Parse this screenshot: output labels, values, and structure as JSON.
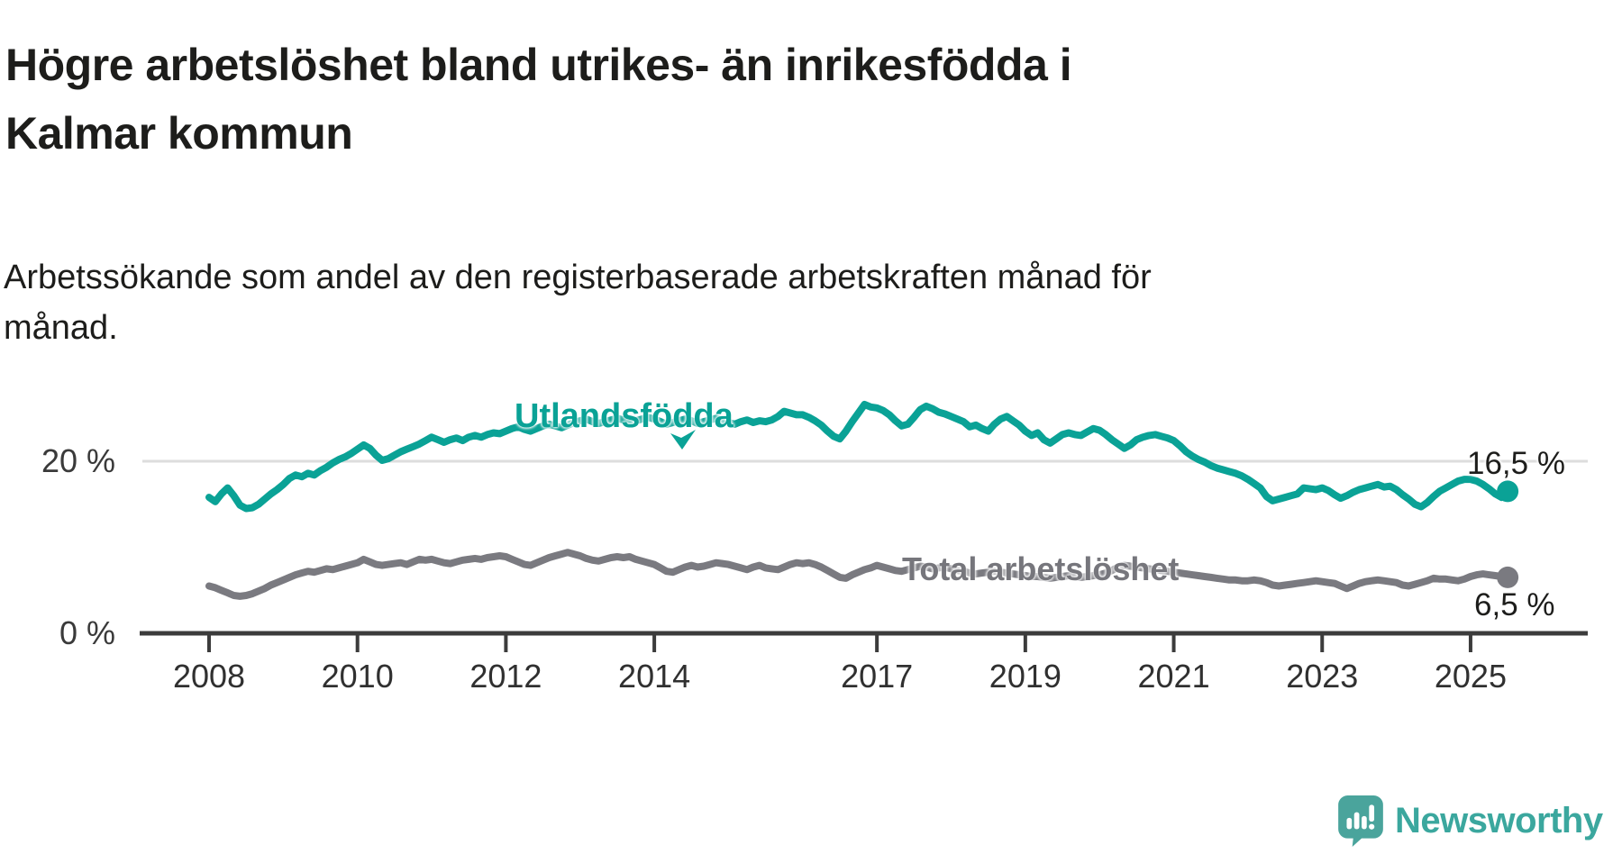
{
  "title": {
    "line1": "Högre arbetslöshet bland utrikes- än inrikesfödda i",
    "line2": "Kalmar kommun"
  },
  "subtitle": {
    "line1": "Arbetssökande som andel av den registerbaserade arbetskraften månad för",
    "line2": "månad."
  },
  "colors": {
    "foreign_line": "#0aa296",
    "total_line": "#7a7a80",
    "total_label": "#76767c",
    "grid": "#dddddd",
    "axis": "#3c3c3c",
    "text": "#1d1d1b",
    "logo": "#3ba79e"
  },
  "chart_data": {
    "type": "line",
    "unit": "%",
    "frequency": "monthly",
    "x_start": "2008-01",
    "x_end": "2025-07",
    "ylim": [
      0,
      28
    ],
    "grid": "y-20-only",
    "x_tick_years": [
      2008,
      2010,
      2012,
      2014,
      2017,
      2019,
      2021,
      2023,
      2025
    ],
    "y_ticks": [
      {
        "value": 0,
        "label": "0 %"
      },
      {
        "value": 20,
        "label": "20 %"
      }
    ],
    "series": [
      {
        "name": "Utlandsfödda",
        "end_label": "16,5 %",
        "end_value": 16.5,
        "values": [
          15.8,
          15.3,
          16.2,
          16.9,
          16.0,
          14.9,
          14.5,
          14.6,
          15.0,
          15.6,
          16.2,
          16.7,
          17.3,
          18.0,
          18.4,
          18.2,
          18.6,
          18.4,
          18.9,
          19.3,
          19.8,
          20.2,
          20.5,
          20.9,
          21.4,
          21.9,
          21.5,
          20.7,
          20.1,
          20.3,
          20.7,
          21.1,
          21.4,
          21.7,
          22.0,
          22.4,
          22.8,
          22.5,
          22.2,
          22.5,
          22.7,
          22.4,
          22.8,
          23.0,
          22.8,
          23.1,
          23.3,
          23.2,
          23.5,
          23.8,
          24.0,
          23.7,
          23.5,
          23.8,
          24.1,
          24.3,
          24.1,
          23.9,
          24.2,
          24.5,
          24.7,
          24.9,
          24.6,
          24.4,
          24.6,
          24.8,
          25.0,
          24.8,
          24.5,
          24.7,
          24.9,
          25.1,
          24.9,
          24.6,
          24.3,
          24.5,
          24.7,
          24.9,
          24.7,
          24.4,
          24.6,
          24.8,
          25.0,
          24.8,
          24.5,
          24.3,
          24.6,
          24.8,
          24.5,
          24.7,
          24.6,
          24.8,
          25.2,
          25.8,
          25.6,
          25.4,
          25.4,
          25.1,
          24.7,
          24.2,
          23.5,
          22.9,
          22.6,
          23.5,
          24.6,
          25.6,
          26.6,
          26.3,
          26.2,
          25.9,
          25.4,
          24.7,
          24.1,
          24.3,
          25.1,
          26.0,
          26.4,
          26.1,
          25.7,
          25.5,
          25.2,
          24.9,
          24.6,
          24.0,
          24.2,
          23.8,
          23.5,
          24.3,
          24.9,
          25.2,
          24.7,
          24.2,
          23.5,
          23.0,
          23.3,
          22.5,
          22.1,
          22.6,
          23.1,
          23.3,
          23.1,
          23.0,
          23.4,
          23.8,
          23.6,
          23.1,
          22.5,
          22.0,
          21.5,
          21.9,
          22.5,
          22.8,
          23.0,
          23.1,
          22.9,
          22.7,
          22.4,
          21.8,
          21.1,
          20.6,
          20.2,
          19.9,
          19.5,
          19.2,
          19.0,
          18.8,
          18.6,
          18.3,
          17.9,
          17.4,
          16.9,
          15.9,
          15.4,
          15.6,
          15.8,
          16.0,
          16.2,
          16.9,
          16.8,
          16.7,
          16.9,
          16.6,
          16.1,
          15.7,
          16.0,
          16.4,
          16.7,
          16.9,
          17.1,
          17.3,
          17.0,
          17.1,
          16.7,
          16.1,
          15.6,
          15.0,
          14.7,
          15.2,
          15.9,
          16.5,
          16.9,
          17.3,
          17.7,
          17.9,
          17.9,
          17.7,
          17.3,
          16.8,
          16.2,
          15.8,
          16.5
        ]
      },
      {
        "name": "Total arbetslöshet",
        "end_label": "6,5 %",
        "end_value": 6.5,
        "values": [
          5.5,
          5.3,
          5.0,
          4.7,
          4.4,
          4.3,
          4.4,
          4.6,
          4.9,
          5.2,
          5.6,
          5.9,
          6.2,
          6.5,
          6.8,
          7.0,
          7.2,
          7.1,
          7.3,
          7.5,
          7.4,
          7.6,
          7.8,
          8.0,
          8.2,
          8.6,
          8.3,
          8.0,
          7.9,
          8.0,
          8.1,
          8.2,
          8.0,
          8.3,
          8.6,
          8.5,
          8.6,
          8.4,
          8.2,
          8.1,
          8.3,
          8.5,
          8.6,
          8.7,
          8.6,
          8.8,
          8.9,
          9.0,
          8.9,
          8.6,
          8.3,
          8.0,
          7.9,
          8.2,
          8.5,
          8.8,
          9.0,
          9.2,
          9.4,
          9.2,
          9.0,
          8.7,
          8.5,
          8.4,
          8.6,
          8.8,
          8.9,
          8.8,
          8.9,
          8.6,
          8.4,
          8.2,
          8.0,
          7.6,
          7.2,
          7.1,
          7.4,
          7.7,
          7.9,
          7.7,
          7.8,
          8.0,
          8.2,
          8.1,
          8.0,
          7.8,
          7.6,
          7.4,
          7.7,
          7.9,
          7.6,
          7.5,
          7.4,
          7.7,
          8.0,
          8.2,
          8.1,
          8.2,
          8.0,
          7.7,
          7.3,
          6.9,
          6.5,
          6.4,
          6.8,
          7.1,
          7.4,
          7.6,
          7.9,
          7.7,
          7.5,
          7.3,
          7.2,
          7.4,
          7.6,
          7.8,
          7.7,
          7.5,
          7.6,
          7.7,
          7.5,
          7.3,
          7.2,
          7.0,
          6.9,
          7.0,
          7.1,
          7.2,
          7.1,
          7.0,
          6.9,
          6.8,
          6.7,
          6.6,
          6.6,
          6.5,
          6.4,
          6.5,
          6.6,
          6.7,
          6.6,
          6.5,
          6.6,
          6.7,
          6.8,
          7.0,
          7.3,
          7.7,
          7.9,
          7.8,
          7.7,
          7.6,
          7.5,
          7.4,
          7.3,
          7.2,
          7.1,
          7.0,
          6.9,
          6.8,
          6.7,
          6.6,
          6.5,
          6.4,
          6.3,
          6.2,
          6.2,
          6.1,
          6.1,
          6.2,
          6.1,
          5.9,
          5.6,
          5.5,
          5.6,
          5.7,
          5.8,
          5.9,
          6.0,
          6.1,
          6.0,
          5.9,
          5.8,
          5.5,
          5.2,
          5.5,
          5.8,
          6.0,
          6.1,
          6.2,
          6.1,
          6.0,
          5.9,
          5.6,
          5.5,
          5.7,
          5.9,
          6.1,
          6.4,
          6.3,
          6.3,
          6.2,
          6.1,
          6.3,
          6.6,
          6.8,
          6.9,
          6.8,
          6.7,
          6.6,
          6.5
        ]
      }
    ]
  },
  "logo": {
    "text": "Newsworthy"
  }
}
